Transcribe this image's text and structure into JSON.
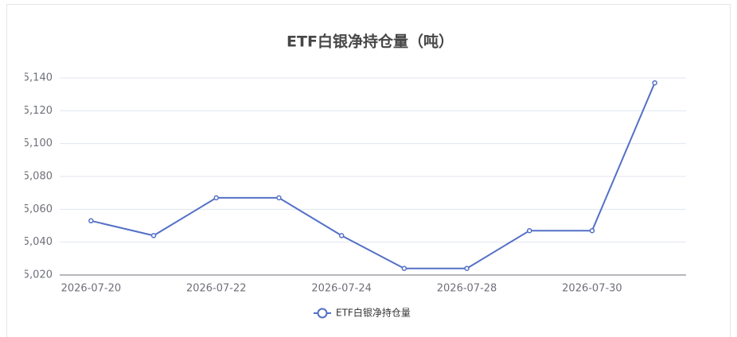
{
  "chart_data": {
    "type": "line",
    "title": "ETF白银净持仓量（吨）",
    "categories": [
      "2026-07-20",
      null,
      "2026-07-22",
      null,
      "2026-07-24",
      null,
      "2026-07-28",
      null,
      "2026-07-30",
      null
    ],
    "series": [
      {
        "name": "ETF白银净持仓量",
        "color": "#5470c6",
        "values": [
          5053,
          5044,
          5067,
          5067,
          5044,
          5024,
          5024,
          5047,
          5047,
          5137
        ]
      }
    ],
    "ylim": [
      5020,
      5140
    ],
    "yticks": [
      {
        "value": 5020,
        "label": "5,020"
      },
      {
        "value": 5040,
        "label": "5,040"
      },
      {
        "value": 5060,
        "label": "5,060"
      },
      {
        "value": 5080,
        "label": "5,080"
      },
      {
        "value": 5100,
        "label": "5,100"
      },
      {
        "value": 5120,
        "label": "5,120"
      },
      {
        "value": 5140,
        "label": "5,140"
      }
    ],
    "grid": true
  }
}
